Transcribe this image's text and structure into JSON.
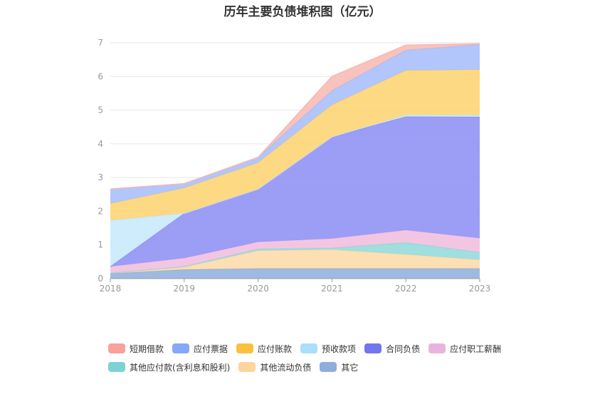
{
  "chart_data": {
    "type": "area",
    "stacked": true,
    "title": "历年主要负债堆积图（亿元）",
    "categories": [
      "2018",
      "2019",
      "2020",
      "2021",
      "2022",
      "2023"
    ],
    "ylim": [
      0,
      7
    ],
    "yticks": [
      0,
      1,
      2,
      3,
      4,
      5,
      6,
      7
    ],
    "grid": true,
    "legend_position": "bottom",
    "series": [
      {
        "name": "其它",
        "color": "#8eaedb",
        "values": [
          0.15,
          0.27,
          0.3,
          0.3,
          0.3,
          0.3
        ]
      },
      {
        "name": "其他流动负债",
        "color": "#fcd9a6",
        "values": [
          0.02,
          0.07,
          0.53,
          0.56,
          0.42,
          0.26
        ]
      },
      {
        "name": "其他应付款(含利息和股利)",
        "color": "#8fd9d9",
        "values": [
          0.0,
          0.02,
          0.05,
          0.05,
          0.35,
          0.22
        ]
      },
      {
        "name": "应付职工薪酬",
        "color": "#f0bcdd",
        "values": [
          0.19,
          0.25,
          0.21,
          0.28,
          0.37,
          0.42
        ]
      },
      {
        "name": "合同负债",
        "color": "#8b8df4",
        "values": [
          0.0,
          1.33,
          1.57,
          3.02,
          3.37,
          3.6
        ]
      },
      {
        "name": "预收款项",
        "color": "#c6e9fb",
        "values": [
          1.37,
          0.0,
          0.0,
          0.0,
          0.05,
          0.05
        ]
      },
      {
        "name": "应付账款",
        "color": "#fdd26f",
        "values": [
          0.5,
          0.75,
          0.78,
          0.95,
          1.32,
          1.35
        ]
      },
      {
        "name": "应付票据",
        "color": "#a5bcfb",
        "values": [
          0.43,
          0.13,
          0.16,
          0.42,
          0.6,
          0.75
        ]
      },
      {
        "name": "短期借款",
        "color": "#f7b8b1",
        "values": [
          0.0,
          0.0,
          0.0,
          0.42,
          0.15,
          0.02
        ]
      }
    ],
    "legend_items": [
      {
        "label": "短期借款",
        "color": "#f9a19a"
      },
      {
        "label": "应付票据",
        "color": "#86a8fa"
      },
      {
        "label": "应付账款",
        "color": "#f9c13e"
      },
      {
        "label": "预收款项",
        "color": "#a8dffa"
      },
      {
        "label": "合同负债",
        "color": "#7375ee"
      },
      {
        "label": "应付职工薪酬",
        "color": "#e9b4dc"
      },
      {
        "label": "其他应付款(含利息和股利)",
        "color": "#7dd3d3"
      },
      {
        "label": "其他流动负债",
        "color": "#fdd49d"
      },
      {
        "label": "其它",
        "color": "#8eaedb"
      }
    ]
  }
}
